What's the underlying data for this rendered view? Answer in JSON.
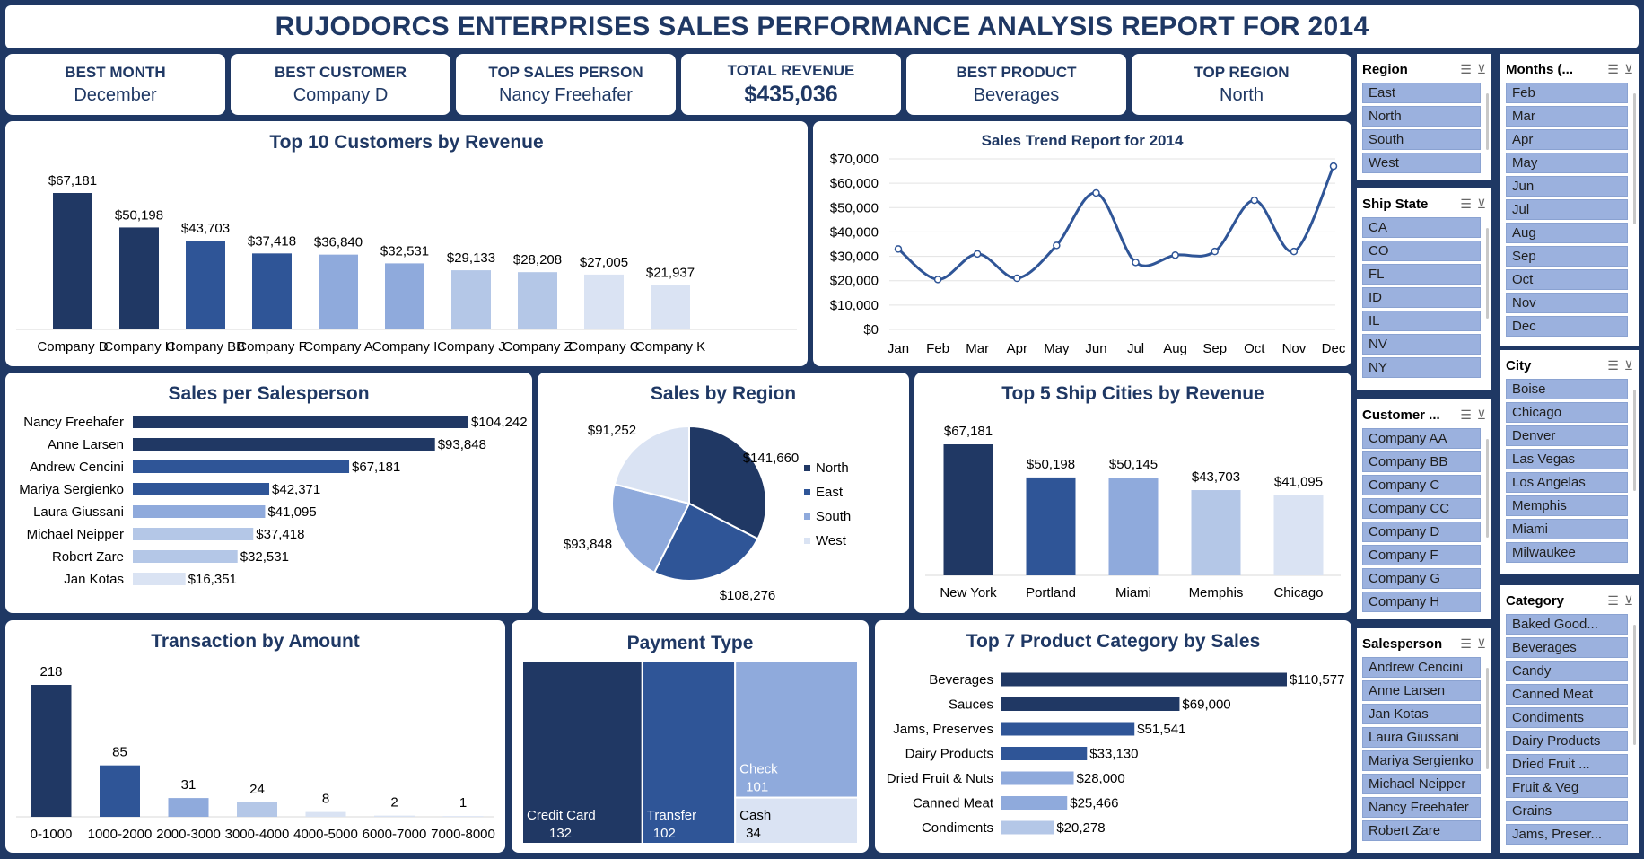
{
  "title": "RUJODORCS ENTERPRISES SALES PERFORMANCE ANALYSIS REPORT FOR 2014",
  "kpis": [
    {
      "label": "BEST MONTH",
      "value": "December"
    },
    {
      "label": "BEST CUSTOMER",
      "value": "Company D"
    },
    {
      "label": "TOP SALES PERSON",
      "value": "Nancy Freehafer"
    },
    {
      "label": "TOTAL REVENUE",
      "value": "$435,036"
    },
    {
      "label": "BEST PRODUCT",
      "value": "Beverages"
    },
    {
      "label": "TOP REGION",
      "value": "North"
    }
  ],
  "colors": {
    "dark": "#203864",
    "mid": "#2f5597",
    "light": "#8faadc",
    "lighter": "#b4c7e7",
    "lightest": "#dae3f3"
  },
  "chart_data": [
    {
      "id": "top-customers",
      "type": "bar",
      "title": "Top 10 Customers by Revenue",
      "categories": [
        "Company D",
        "Company H",
        "Company BB",
        "Company F",
        "Company A",
        "Company I",
        "Company J",
        "Company Z",
        "Company C",
        "Company K"
      ],
      "values": [
        67181,
        50198,
        43703,
        37418,
        36840,
        32531,
        29133,
        28208,
        27005,
        21937
      ],
      "labels": [
        "$67,181",
        "$50,198",
        "$43,703",
        "$37,418",
        "$36,840",
        "$32,531",
        "$29,133",
        "$28,208",
        "$27,005",
        "$21,937"
      ],
      "ylim": [
        0,
        70000
      ]
    },
    {
      "id": "sales-trend",
      "type": "line",
      "title": "Sales Trend Report for 2014",
      "categories": [
        "Jan",
        "Feb",
        "Mar",
        "Apr",
        "May",
        "Jun",
        "Jul",
        "Aug",
        "Sep",
        "Oct",
        "Nov",
        "Dec"
      ],
      "values": [
        33000,
        20500,
        31000,
        21000,
        34500,
        56000,
        27500,
        30500,
        32000,
        53000,
        32000,
        67000
      ],
      "yticks": [
        "$0",
        "$10,000",
        "$20,000",
        "$30,000",
        "$40,000",
        "$50,000",
        "$60,000",
        "$70,000"
      ],
      "ylim": [
        0,
        70000
      ]
    },
    {
      "id": "salesperson",
      "type": "bar",
      "orientation": "horizontal",
      "title": "Sales per Salesperson",
      "categories": [
        "Nancy Freehafer",
        "Anne Larsen",
        "Andrew Cencini",
        "Mariya Sergienko",
        "Laura Giussani",
        "Michael Neipper",
        "Robert Zare",
        "Jan Kotas"
      ],
      "values": [
        104242,
        93848,
        67181,
        42371,
        41095,
        37418,
        32531,
        16351
      ],
      "labels": [
        "$104,242",
        "$93,848",
        "$67,181",
        "$42,371",
        "$41,095",
        "$37,418",
        "$32,531",
        "$16,351"
      ]
    },
    {
      "id": "region",
      "type": "pie",
      "title": "Sales by Region",
      "categories": [
        "North",
        "East",
        "South",
        "West"
      ],
      "values": [
        141660,
        108276,
        93848,
        91252
      ],
      "labels": [
        "$141,660",
        "$108,276",
        "$93,848",
        "$91,252"
      ],
      "legend": "right"
    },
    {
      "id": "ship-cities",
      "type": "bar",
      "title": "Top 5 Ship Cities by Revenue",
      "categories": [
        "New York",
        "Portland",
        "Miami",
        "Memphis",
        "Chicago"
      ],
      "values": [
        67181,
        50198,
        50145,
        43703,
        41095
      ],
      "labels": [
        "$67,181",
        "$50,198",
        "$50,145",
        "$43,703",
        "$41,095"
      ],
      "ylim": [
        0,
        70000
      ]
    },
    {
      "id": "transactions",
      "type": "bar",
      "title": "Transaction by Amount",
      "categories": [
        "0-1000",
        "1000-2000",
        "2000-3000",
        "3000-4000",
        "4000-5000",
        "6000-7000",
        "7000-8000"
      ],
      "values": [
        218,
        85,
        31,
        24,
        8,
        2,
        1
      ],
      "labels": [
        "218",
        "85",
        "31",
        "24",
        "8",
        "2",
        "1"
      ]
    },
    {
      "id": "payment",
      "type": "treemap",
      "title": "Payment Type",
      "categories": [
        "Credit Card",
        "Transfer",
        "Check",
        "Cash"
      ],
      "values": [
        132,
        102,
        101,
        34
      ],
      "labels": [
        "132",
        "102",
        "101",
        "34"
      ]
    },
    {
      "id": "product-category",
      "type": "bar",
      "orientation": "horizontal",
      "title": "Top 7 Product Category by Sales",
      "categories": [
        "Beverages",
        "Sauces",
        "Jams, Preserves",
        "Dairy Products",
        "Dried Fruit & Nuts",
        "Canned Meat",
        "Condiments"
      ],
      "values": [
        110577,
        69000,
        51541,
        33130,
        28000,
        25466,
        20278
      ],
      "labels": [
        "$110,577",
        "$69,000",
        "$51,541",
        "$33,130",
        "$28,000",
        "$25,466",
        "$20,278"
      ]
    }
  ],
  "slicers": {
    "region": {
      "title": "Region",
      "items": [
        "East",
        "North",
        "South",
        "West"
      ]
    },
    "ship_state": {
      "title": "Ship State",
      "items": [
        "CA",
        "CO",
        "FL",
        "ID",
        "IL",
        "NV",
        "NY"
      ]
    },
    "customer": {
      "title": "Customer ...",
      "items": [
        "Company AA",
        "Company BB",
        "Company C",
        "Company CC",
        "Company D",
        "Company F",
        "Company G",
        "Company H"
      ]
    },
    "salesperson": {
      "title": "Salesperson",
      "items": [
        "Andrew Cencini",
        "Anne Larsen",
        "Jan Kotas",
        "Laura Giussani",
        "Mariya Sergienko",
        "Michael Neipper",
        "Nancy Freehafer",
        "Robert Zare"
      ]
    },
    "months": {
      "title": "Months (...",
      "items": [
        "Feb",
        "Mar",
        "Apr",
        "May",
        "Jun",
        "Jul",
        "Aug",
        "Sep",
        "Oct",
        "Nov",
        "Dec"
      ]
    },
    "city": {
      "title": "City",
      "items": [
        "Boise",
        "Chicago",
        "Denver",
        "Las Vegas",
        "Los Angelas",
        "Memphis",
        "Miami",
        "Milwaukee"
      ]
    },
    "category": {
      "title": "Category",
      "items": [
        "Baked Good...",
        "Beverages",
        "Candy",
        "Canned Meat",
        "Condiments",
        "Dairy Products",
        "Dried Fruit ...",
        "Fruit & Veg",
        "Grains",
        "Jams, Preser..."
      ]
    }
  },
  "icons": {
    "multi_select": "multi-select-icon",
    "clear_filter": "clear-filter-icon"
  }
}
